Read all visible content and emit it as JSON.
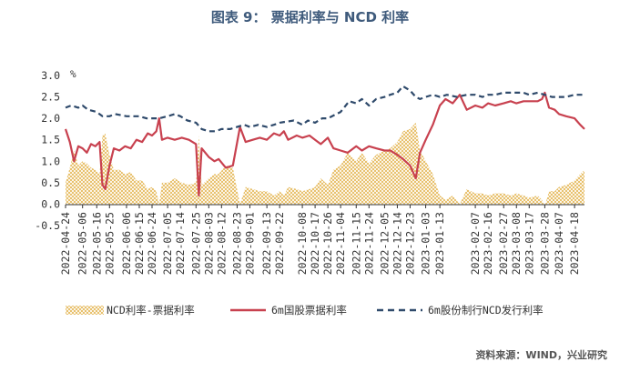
{
  "title": "图表 9： 票据利率与 NCD 利率",
  "source": "资料来源：WIND，兴业研究",
  "chart_data": {
    "type": "line",
    "unit": "%",
    "ylim": [
      -0.5,
      3.0
    ],
    "yticks": [
      "3.0",
      "2.5",
      "2.0",
      "1.5",
      "1.0",
      "0.5",
      "0.0",
      "-0.5"
    ],
    "ytick_values": [
      3.0,
      2.5,
      2.0,
      1.5,
      1.0,
      0.5,
      0.0,
      -0.5
    ],
    "x_start": "2022-04-24",
    "x_end": "2023-04-25",
    "xticks": [
      "2022-04-24",
      "2022-05-06",
      "2022-05-16",
      "2022-05-25",
      "2022-06-06",
      "2022-06-15",
      "2022-06-24",
      "2022-07-05",
      "2022-07-14",
      "2022-07-25",
      "2022-08-03",
      "2022-08-12",
      "2022-08-23",
      "2022-09-01",
      "2022-09-13",
      "2022-09-22",
      "2022-10-08",
      "2022-10-17",
      "2022-10-26",
      "2022-11-04",
      "2022-11-15",
      "2022-11-24",
      "2022-12-05",
      "2022-12-14",
      "2022-12-23",
      "2023-01-03",
      "2023-01-13",
      "2023-02-07",
      "2023-02-16",
      "2023-02-27",
      "2023-03-08",
      "2023-03-17",
      "2023-03-28",
      "2023-04-07",
      "2023-04-18"
    ],
    "legend": [
      {
        "name": "NCD利率-票据利率",
        "style": "hatched-area",
        "color": "#e8b94a"
      },
      {
        "name": "6m国股票据利率",
        "style": "solid",
        "color": "#c8414f"
      },
      {
        "name": "6m股份制行NCD发行利率",
        "style": "dashed",
        "color": "#2f4a6b"
      }
    ],
    "series": [
      {
        "name": "6m国股票据利率",
        "points": [
          [
            "2022-04-24",
            1.75
          ],
          [
            "2022-04-27",
            1.45
          ],
          [
            "2022-04-30",
            1.0
          ],
          [
            "2022-05-03",
            1.35
          ],
          [
            "2022-05-06",
            1.3
          ],
          [
            "2022-05-09",
            1.2
          ],
          [
            "2022-05-12",
            1.4
          ],
          [
            "2022-05-15",
            1.35
          ],
          [
            "2022-05-18",
            1.45
          ],
          [
            "2022-05-20",
            0.45
          ],
          [
            "2022-05-22",
            0.35
          ],
          [
            "2022-05-25",
            0.9
          ],
          [
            "2022-05-28",
            1.3
          ],
          [
            "2022-06-01",
            1.25
          ],
          [
            "2022-06-05",
            1.35
          ],
          [
            "2022-06-09",
            1.3
          ],
          [
            "2022-06-13",
            1.5
          ],
          [
            "2022-06-17",
            1.45
          ],
          [
            "2022-06-21",
            1.65
          ],
          [
            "2022-06-24",
            1.6
          ],
          [
            "2022-06-27",
            1.7
          ],
          [
            "2022-06-29",
            2.0
          ],
          [
            "2022-07-01",
            1.5
          ],
          [
            "2022-07-05",
            1.55
          ],
          [
            "2022-07-10",
            1.5
          ],
          [
            "2022-07-15",
            1.55
          ],
          [
            "2022-07-20",
            1.5
          ],
          [
            "2022-07-25",
            1.4
          ],
          [
            "2022-07-27",
            0.2
          ],
          [
            "2022-07-29",
            1.3
          ],
          [
            "2022-08-03",
            1.1
          ],
          [
            "2022-08-07",
            1.0
          ],
          [
            "2022-08-10",
            1.05
          ],
          [
            "2022-08-15",
            0.85
          ],
          [
            "2022-08-20",
            0.9
          ],
          [
            "2022-08-25",
            1.8
          ],
          [
            "2022-08-29",
            1.45
          ],
          [
            "2022-09-03",
            1.5
          ],
          [
            "2022-09-08",
            1.55
          ],
          [
            "2022-09-13",
            1.5
          ],
          [
            "2022-09-18",
            1.65
          ],
          [
            "2022-09-22",
            1.6
          ],
          [
            "2022-09-25",
            1.7
          ],
          [
            "2022-09-28",
            1.5
          ],
          [
            "2022-10-04",
            1.6
          ],
          [
            "2022-10-08",
            1.55
          ],
          [
            "2022-10-13",
            1.6
          ],
          [
            "2022-10-17",
            1.5
          ],
          [
            "2022-10-21",
            1.4
          ],
          [
            "2022-10-26",
            1.55
          ],
          [
            "2022-10-30",
            1.3
          ],
          [
            "2022-11-04",
            1.25
          ],
          [
            "2022-11-09",
            1.2
          ],
          [
            "2022-11-15",
            1.35
          ],
          [
            "2022-11-19",
            1.25
          ],
          [
            "2022-11-24",
            1.35
          ],
          [
            "2022-11-29",
            1.3
          ],
          [
            "2022-12-05",
            1.25
          ],
          [
            "2022-12-09",
            1.25
          ],
          [
            "2022-12-14",
            1.15
          ],
          [
            "2022-12-18",
            1.05
          ],
          [
            "2022-12-23",
            0.9
          ],
          [
            "2022-12-27",
            0.6
          ],
          [
            "2022-12-30",
            1.2
          ],
          [
            "2023-01-03",
            1.5
          ],
          [
            "2023-01-08",
            1.85
          ],
          [
            "2023-01-13",
            2.3
          ],
          [
            "2023-01-17",
            2.45
          ],
          [
            "2023-01-22",
            2.35
          ],
          [
            "2023-01-27",
            2.55
          ],
          [
            "2023-02-01",
            2.2
          ],
          [
            "2023-02-07",
            2.3
          ],
          [
            "2023-02-12",
            2.25
          ],
          [
            "2023-02-16",
            2.35
          ],
          [
            "2023-02-21",
            2.3
          ],
          [
            "2023-02-27",
            2.35
          ],
          [
            "2023-03-04",
            2.4
          ],
          [
            "2023-03-08",
            2.35
          ],
          [
            "2023-03-13",
            2.4
          ],
          [
            "2023-03-17",
            2.4
          ],
          [
            "2023-03-23",
            2.4
          ],
          [
            "2023-03-26",
            2.45
          ],
          [
            "2023-03-28",
            2.6
          ],
          [
            "2023-03-31",
            2.25
          ],
          [
            "2023-04-04",
            2.2
          ],
          [
            "2023-04-07",
            2.1
          ],
          [
            "2023-04-12",
            2.05
          ],
          [
            "2023-04-18",
            2.0
          ],
          [
            "2023-04-22",
            1.85
          ],
          [
            "2023-04-25",
            1.75
          ]
        ]
      },
      {
        "name": "6m股份制行NCD发行利率",
        "points": [
          [
            "2022-04-24",
            2.25
          ],
          [
            "2022-04-28",
            2.3
          ],
          [
            "2022-05-03",
            2.25
          ],
          [
            "2022-05-06",
            2.3
          ],
          [
            "2022-05-10",
            2.2
          ],
          [
            "2022-05-16",
            2.15
          ],
          [
            "2022-05-20",
            2.05
          ],
          [
            "2022-05-25",
            2.05
          ],
          [
            "2022-05-29",
            2.1
          ],
          [
            "2022-06-06",
            2.05
          ],
          [
            "2022-06-10",
            2.05
          ],
          [
            "2022-06-15",
            2.05
          ],
          [
            "2022-06-20",
            2.0
          ],
          [
            "2022-06-24",
            2.0
          ],
          [
            "2022-06-29",
            2.0
          ],
          [
            "2022-07-05",
            2.05
          ],
          [
            "2022-07-10",
            2.1
          ],
          [
            "2022-07-14",
            2.05
          ],
          [
            "2022-07-19",
            1.95
          ],
          [
            "2022-07-25",
            1.9
          ],
          [
            "2022-07-29",
            1.75
          ],
          [
            "2022-08-03",
            1.7
          ],
          [
            "2022-08-08",
            1.7
          ],
          [
            "2022-08-12",
            1.75
          ],
          [
            "2022-08-18",
            1.75
          ],
          [
            "2022-08-23",
            1.8
          ],
          [
            "2022-08-28",
            1.85
          ],
          [
            "2022-09-01",
            1.8
          ],
          [
            "2022-09-07",
            1.85
          ],
          [
            "2022-09-13",
            1.8
          ],
          [
            "2022-09-18",
            1.85
          ],
          [
            "2022-09-22",
            1.9
          ],
          [
            "2022-10-02",
            1.95
          ],
          [
            "2022-10-08",
            1.85
          ],
          [
            "2022-10-12",
            1.95
          ],
          [
            "2022-10-17",
            1.9
          ],
          [
            "2022-10-22",
            2.0
          ],
          [
            "2022-10-26",
            2.0
          ],
          [
            "2022-11-01",
            2.1
          ],
          [
            "2022-11-04",
            2.15
          ],
          [
            "2022-11-10",
            2.4
          ],
          [
            "2022-11-15",
            2.35
          ],
          [
            "2022-11-19",
            2.45
          ],
          [
            "2022-11-24",
            2.3
          ],
          [
            "2022-11-29",
            2.45
          ],
          [
            "2022-12-05",
            2.5
          ],
          [
            "2022-12-09",
            2.55
          ],
          [
            "2022-12-14",
            2.6
          ],
          [
            "2022-12-18",
            2.75
          ],
          [
            "2022-12-23",
            2.65
          ],
          [
            "2022-12-27",
            2.5
          ],
          [
            "2022-12-30",
            2.45
          ],
          [
            "2023-01-03",
            2.5
          ],
          [
            "2023-01-08",
            2.55
          ],
          [
            "2023-01-13",
            2.5
          ],
          [
            "2023-01-18",
            2.55
          ],
          [
            "2023-01-25",
            2.5
          ],
          [
            "2023-02-01",
            2.55
          ],
          [
            "2023-02-07",
            2.55
          ],
          [
            "2023-02-12",
            2.5
          ],
          [
            "2023-02-16",
            2.55
          ],
          [
            "2023-02-21",
            2.55
          ],
          [
            "2023-02-27",
            2.6
          ],
          [
            "2023-03-04",
            2.6
          ],
          [
            "2023-03-08",
            2.6
          ],
          [
            "2023-03-13",
            2.6
          ],
          [
            "2023-03-17",
            2.55
          ],
          [
            "2023-03-23",
            2.6
          ],
          [
            "2023-03-28",
            2.55
          ],
          [
            "2023-04-02",
            2.5
          ],
          [
            "2023-04-07",
            2.5
          ],
          [
            "2023-04-12",
            2.5
          ],
          [
            "2023-04-18",
            2.55
          ],
          [
            "2023-04-25",
            2.55
          ]
        ]
      },
      {
        "name": "NCD利率-票据利率",
        "points": [
          [
            "2022-04-24",
            0.5
          ],
          [
            "2022-04-27",
            0.85
          ],
          [
            "2022-04-30",
            1.25
          ],
          [
            "2022-05-03",
            0.9
          ],
          [
            "2022-05-06",
            1.0
          ],
          [
            "2022-05-09",
            0.95
          ],
          [
            "2022-05-12",
            0.85
          ],
          [
            "2022-05-15",
            0.8
          ],
          [
            "2022-05-18",
            0.7
          ],
          [
            "2022-05-20",
            1.6
          ],
          [
            "2022-05-22",
            1.65
          ],
          [
            "2022-05-25",
            1.15
          ],
          [
            "2022-05-28",
            0.8
          ],
          [
            "2022-06-01",
            0.8
          ],
          [
            "2022-06-05",
            0.7
          ],
          [
            "2022-06-09",
            0.75
          ],
          [
            "2022-06-13",
            0.55
          ],
          [
            "2022-06-17",
            0.55
          ],
          [
            "2022-06-21",
            0.35
          ],
          [
            "2022-06-24",
            0.4
          ],
          [
            "2022-06-27",
            0.3
          ],
          [
            "2022-06-29",
            0.0
          ],
          [
            "2022-07-01",
            0.5
          ],
          [
            "2022-07-05",
            0.5
          ],
          [
            "2022-07-10",
            0.6
          ],
          [
            "2022-07-15",
            0.5
          ],
          [
            "2022-07-20",
            0.45
          ],
          [
            "2022-07-25",
            0.5
          ],
          [
            "2022-07-27",
            1.6
          ],
          [
            "2022-07-29",
            0.45
          ],
          [
            "2022-08-03",
            0.6
          ],
          [
            "2022-08-07",
            0.7
          ],
          [
            "2022-08-10",
            0.7
          ],
          [
            "2022-08-15",
            0.9
          ],
          [
            "2022-08-20",
            0.85
          ],
          [
            "2022-08-25",
            0.0
          ],
          [
            "2022-08-29",
            0.4
          ],
          [
            "2022-09-03",
            0.35
          ],
          [
            "2022-09-08",
            0.3
          ],
          [
            "2022-09-13",
            0.3
          ],
          [
            "2022-09-18",
            0.2
          ],
          [
            "2022-09-22",
            0.3
          ],
          [
            "2022-09-25",
            0.2
          ],
          [
            "2022-09-28",
            0.4
          ],
          [
            "2022-10-04",
            0.35
          ],
          [
            "2022-10-08",
            0.3
          ],
          [
            "2022-10-13",
            0.35
          ],
          [
            "2022-10-17",
            0.4
          ],
          [
            "2022-10-21",
            0.6
          ],
          [
            "2022-10-26",
            0.45
          ],
          [
            "2022-10-30",
            0.8
          ],
          [
            "2022-11-04",
            0.9
          ],
          [
            "2022-11-09",
            1.2
          ],
          [
            "2022-11-15",
            1.0
          ],
          [
            "2022-11-19",
            1.2
          ],
          [
            "2022-11-24",
            0.95
          ],
          [
            "2022-11-29",
            1.15
          ],
          [
            "2022-12-05",
            1.25
          ],
          [
            "2022-12-09",
            1.3
          ],
          [
            "2022-12-14",
            1.45
          ],
          [
            "2022-12-18",
            1.7
          ],
          [
            "2022-12-23",
            1.75
          ],
          [
            "2022-12-27",
            1.9
          ],
          [
            "2022-12-30",
            1.25
          ],
          [
            "2023-01-03",
            1.0
          ],
          [
            "2023-01-08",
            0.7
          ],
          [
            "2023-01-13",
            0.2
          ],
          [
            "2023-01-17",
            0.1
          ],
          [
            "2023-01-22",
            0.2
          ],
          [
            "2023-01-27",
            0.0
          ],
          [
            "2023-02-01",
            0.35
          ],
          [
            "2023-02-07",
            0.25
          ],
          [
            "2023-02-12",
            0.25
          ],
          [
            "2023-02-16",
            0.2
          ],
          [
            "2023-02-21",
            0.25
          ],
          [
            "2023-02-27",
            0.25
          ],
          [
            "2023-03-04",
            0.2
          ],
          [
            "2023-03-08",
            0.25
          ],
          [
            "2023-03-13",
            0.2
          ],
          [
            "2023-03-17",
            0.15
          ],
          [
            "2023-03-23",
            0.2
          ],
          [
            "2023-03-26",
            0.1
          ],
          [
            "2023-03-28",
            -0.05
          ],
          [
            "2023-03-31",
            0.3
          ],
          [
            "2023-04-04",
            0.3
          ],
          [
            "2023-04-07",
            0.4
          ],
          [
            "2023-04-12",
            0.45
          ],
          [
            "2023-04-18",
            0.55
          ],
          [
            "2023-04-22",
            0.7
          ],
          [
            "2023-04-25",
            0.8
          ]
        ]
      }
    ]
  }
}
